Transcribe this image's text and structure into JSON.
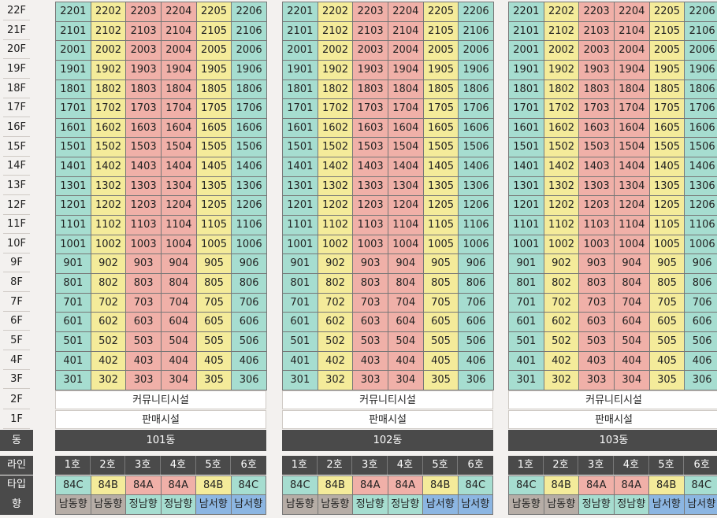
{
  "floors": [
    "22F",
    "21F",
    "20F",
    "19F",
    "18F",
    "17F",
    "16F",
    "15F",
    "14F",
    "13F",
    "12F",
    "11F",
    "10F",
    "9F",
    "8F",
    "7F",
    "6F",
    "5F",
    "4F",
    "3F",
    "2F",
    "1F"
  ],
  "row_labels": {
    "dong": "동",
    "line": "라인",
    "type": "타입",
    "direction": "향"
  },
  "unit_floors": [
    22,
    21,
    20,
    19,
    18,
    17,
    16,
    15,
    14,
    13,
    12,
    11,
    10,
    9,
    8,
    7,
    6,
    5,
    4,
    3
  ],
  "buildings": [
    {
      "name": "101동",
      "community": "커뮤니티시설",
      "retail": "판매시설",
      "lines": [
        "1호",
        "2호",
        "3호",
        "4호",
        "5호",
        "6호"
      ],
      "types": [
        "84C",
        "84B",
        "84A",
        "84A",
        "84B",
        "84C"
      ],
      "directions": [
        "남동향",
        "남동향",
        "정남향",
        "정남향",
        "남서향",
        "남서향"
      ]
    },
    {
      "name": "102동",
      "community": "커뮤니티시설",
      "retail": "판매시설",
      "lines": [
        "1호",
        "2호",
        "3호",
        "4호",
        "5호",
        "6호"
      ],
      "types": [
        "84C",
        "84B",
        "84A",
        "84A",
        "84B",
        "84C"
      ],
      "directions": [
        "남동향",
        "남동향",
        "정남향",
        "정남향",
        "남서향",
        "남서향"
      ]
    },
    {
      "name": "103동",
      "community": "커뮤니티시설",
      "retail": "판매시설",
      "lines": [
        "1호",
        "2호",
        "3호",
        "4호",
        "5호",
        "6호"
      ],
      "types": [
        "84C",
        "84B",
        "84A",
        "84A",
        "84B",
        "84C"
      ],
      "directions": [
        "남동향",
        "남동향",
        "정남향",
        "정남향",
        "남서향",
        "남서향"
      ]
    }
  ],
  "colors": {
    "line_1_6": "#a6ddd0",
    "line_2_5": "#f4eb9a",
    "line_3_4": "#f0b0a8",
    "southeast": "#b6ada6",
    "south": "#a6ddd0",
    "southwest": "#8cb6e2",
    "dark_header": "#4a4a4a"
  }
}
